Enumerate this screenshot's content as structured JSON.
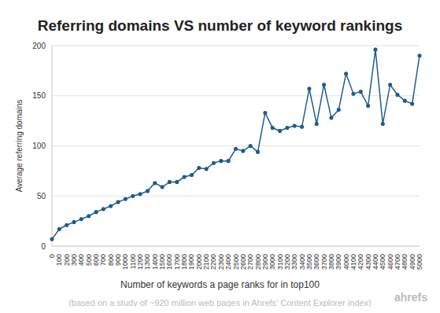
{
  "chart_data": {
    "type": "line",
    "title": "Referring domains VS number of keyword rankings",
    "x_label": "Number of keywords a page ranks for in top100",
    "y_label": "Average referring domains",
    "note": "(based on a study of ~920 million web pages in Ahrefs' Content Explorer index)",
    "brand": "ahrefs",
    "categories": [
      "0",
      "100",
      "200",
      "300",
      "400",
      "500",
      "600",
      "700",
      "800",
      "900",
      "1000",
      "1100",
      "1200",
      "1300",
      "1400",
      "1500",
      "1600",
      "1700",
      "1800",
      "1900",
      "2000",
      "2100",
      "2200",
      "2300",
      "2400",
      "2500",
      "2600",
      "2700",
      "2800",
      "2900",
      "3000",
      "3100",
      "3200",
      "3300",
      "3400",
      "3500",
      "3600",
      "3700",
      "3800",
      "3900",
      "4000",
      "4100",
      "4200",
      "4300",
      "4400",
      "4500",
      "4600",
      "4700",
      "4800",
      "4900",
      "5000"
    ],
    "values": [
      7,
      17,
      21,
      24,
      27,
      30,
      34,
      37,
      40,
      44,
      47,
      50,
      52,
      55,
      63,
      59,
      64,
      64,
      69,
      71,
      78,
      77,
      83,
      85,
      85,
      97,
      95,
      100,
      94,
      133,
      118,
      115,
      118,
      120,
      119,
      157,
      122,
      161,
      128,
      136,
      172,
      152,
      154,
      140,
      196,
      122,
      161,
      151,
      145,
      142,
      190
    ],
    "color": "#1f5b8e",
    "marker": "circle",
    "ylim": [
      0,
      200
    ],
    "yticks": [
      0,
      50,
      100,
      150,
      200
    ],
    "grid": true
  }
}
